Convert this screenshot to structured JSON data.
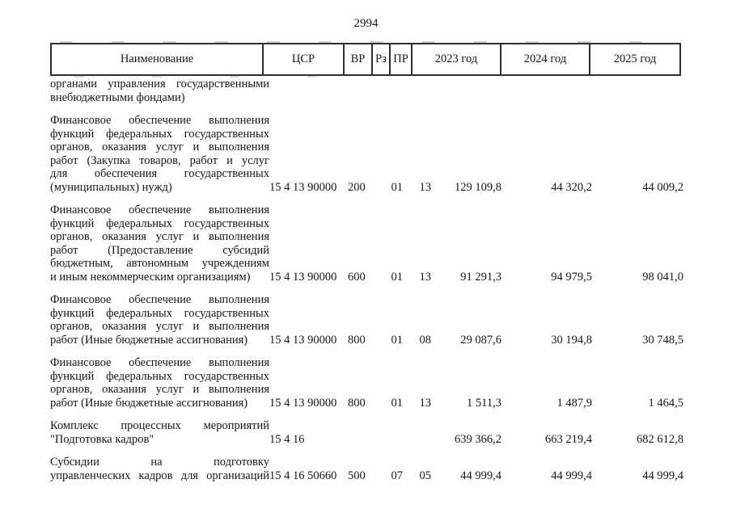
{
  "colors": {
    "ink": "#161616",
    "rule": "#2f2f2f"
  },
  "page": {
    "number": "2994"
  },
  "table": {
    "columns": [
      "Наименование",
      "ЦСР",
      "ВР",
      "Рз",
      "ПР",
      "2023 год",
      "2024 год",
      "2025 год"
    ]
  },
  "rows": [
    {
      "name_lines": [
        "органами управления государственными",
        "внебюджетными фондами)"
      ],
      "csr": "",
      "vr": "",
      "rz": "",
      "pr": "",
      "y2023": "",
      "y2024": "",
      "y2025": ""
    },
    {
      "name_lines": [
        "Финансовое обеспечение выполнения",
        "функций федеральных государственных",
        "органов, оказания услуг и выполнения",
        "работ (Закупка товаров, работ и услуг",
        "для обеспечения государственных",
        "(муниципальных) нужд)"
      ],
      "csr": "15 4 13 90000",
      "vr": "200",
      "rz": "01",
      "pr": "13",
      "y2023": "129 109,8",
      "y2024": "44 320,2",
      "y2025": "44 009,2"
    },
    {
      "name_lines": [
        "Финансовое обеспечение выполнения",
        "функций федеральных государственных",
        "органов, оказания услуг и выполнения",
        "работ (Предоставление субсидий",
        "бюджетным, автономным учреждениям",
        "и иным некоммерческим организациям)"
      ],
      "csr": "15 4 13 90000",
      "vr": "600",
      "rz": "01",
      "pr": "13",
      "y2023": "91 291,3",
      "y2024": "94 979,5",
      "y2025": "98 041,0"
    },
    {
      "name_lines": [
        "Финансовое обеспечение выполнения",
        "функций федеральных государственных",
        "органов, оказания услуг и выполнения",
        "работ (Иные бюджетные ассигнования)"
      ],
      "csr": "15 4 13 90000",
      "vr": "800",
      "rz": "01",
      "pr": "08",
      "y2023": "29 087,6",
      "y2024": "30 194,8",
      "y2025": "30 748,5"
    },
    {
      "name_lines": [
        "Финансовое обеспечение выполнения",
        "функций федеральных государственных",
        "органов, оказания услуг и выполнения",
        "работ (Иные бюджетные ассигнования)"
      ],
      "csr": "15 4 13 90000",
      "vr": "800",
      "rz": "01",
      "pr": "13",
      "y2023": "1 511,3",
      "y2024": "1 487,9",
      "y2025": "1 464,5"
    },
    {
      "name_lines": [
        "Комплекс процессных мероприятий",
        "\"Подготовка кадров\""
      ],
      "csr": "15 4 16",
      "vr": "",
      "rz": "",
      "pr": "",
      "y2023": "639 366,2",
      "y2024": "663 219,4",
      "y2025": "682 612,8"
    },
    {
      "name_lines": [
        "Субсидии на подготовку",
        "управленческих кадров для организаций"
      ],
      "justify_all": true,
      "csr": "15 4 16 50660",
      "vr": "500",
      "rz": "07",
      "pr": "05",
      "y2023": "44 999,4",
      "y2024": "44 999,4",
      "y2025": "44 999,4"
    }
  ]
}
